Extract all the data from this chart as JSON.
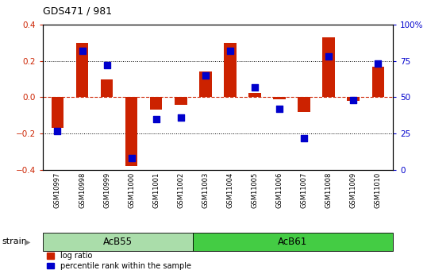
{
  "title": "GDS471 / 981",
  "samples": [
    "GSM10997",
    "GSM10998",
    "GSM10999",
    "GSM11000",
    "GSM11001",
    "GSM11002",
    "GSM11003",
    "GSM11004",
    "GSM11005",
    "GSM11006",
    "GSM11007",
    "GSM11008",
    "GSM11009",
    "GSM11010"
  ],
  "log_ratio": [
    -0.17,
    0.3,
    0.1,
    -0.38,
    -0.07,
    -0.04,
    0.14,
    0.3,
    0.025,
    -0.01,
    -0.08,
    0.33,
    -0.02,
    0.17
  ],
  "percentile": [
    27,
    82,
    72,
    8,
    35,
    36,
    65,
    82,
    57,
    42,
    22,
    78,
    48,
    73
  ],
  "groups": [
    {
      "label": "AcB55",
      "start": 0,
      "end": 5,
      "color": "#aaddaa"
    },
    {
      "label": "AcB61",
      "start": 6,
      "end": 13,
      "color": "#44cc44"
    }
  ],
  "ylim_left": [
    -0.4,
    0.4
  ],
  "ylim_right": [
    0,
    100
  ],
  "yticks_left": [
    -0.4,
    -0.2,
    0.0,
    0.2,
    0.4
  ],
  "yticks_right": [
    0,
    25,
    50,
    75,
    100
  ],
  "ytick_labels_right": [
    "0",
    "25",
    "50",
    "75",
    "100%"
  ],
  "hlines": [
    -0.2,
    0.0,
    0.2
  ],
  "bar_color": "#CC2200",
  "dot_color": "#0000CC",
  "bar_width": 0.5,
  "dot_size": 28,
  "strain_label": "strain",
  "legend_items": [
    "log ratio",
    "percentile rank within the sample"
  ],
  "background_color": "#ffffff",
  "tick_label_color_left": "#CC2200",
  "tick_label_color_right": "#0000CC",
  "zero_line_color": "#CC2200",
  "fig_width": 5.38,
  "fig_height": 3.45,
  "dpi": 100
}
